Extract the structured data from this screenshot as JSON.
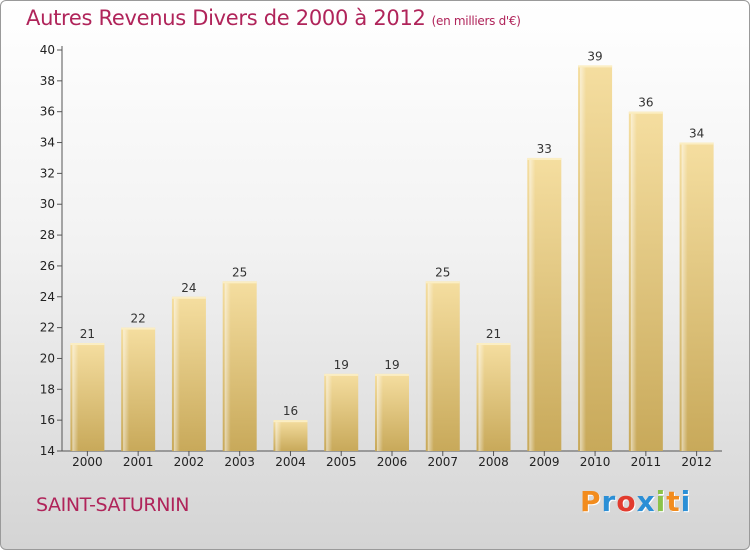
{
  "title": "Autres Revenus Divers de 2000 à 2012",
  "title_unit": "(en milliers d'€)",
  "commune": "SAINT-SATURNIN",
  "logo": {
    "letters": [
      "P",
      "r",
      "o",
      "x",
      "i",
      "t",
      "i"
    ],
    "colors": [
      "#f28c1e",
      "#2b8fd6",
      "#e23b2e",
      "#2b8fd6",
      "#8bc34a",
      "#f28c1e",
      "#2b8fd6"
    ]
  },
  "colors": {
    "bar_top": "#f5dea0",
    "bar_bottom": "#c8a95a",
    "axis": "#555555",
    "title": "#b0245a"
  },
  "chart_data": {
    "type": "bar",
    "title": "Autres Revenus Divers de 2000 à 2012",
    "categories": [
      "2000",
      "2001",
      "2002",
      "2003",
      "2004",
      "2005",
      "2006",
      "2007",
      "2008",
      "2009",
      "2010",
      "2011",
      "2012"
    ],
    "values": [
      21,
      22,
      24,
      25,
      16,
      19,
      19,
      25,
      21,
      33,
      39,
      36,
      34
    ],
    "data_labels": [
      "21",
      "22",
      "24",
      "25",
      "16",
      "19",
      "19",
      "25",
      "21",
      "33",
      "39",
      "36",
      "34"
    ],
    "ylim": [
      14,
      40
    ],
    "yticks": [
      14,
      16,
      18,
      20,
      22,
      24,
      26,
      28,
      30,
      32,
      34,
      36,
      38,
      40
    ],
    "ytick_labels": [
      "14",
      "16",
      "18",
      "20",
      "22",
      "24",
      "26",
      "28",
      "30",
      "32",
      "34",
      "36",
      "38",
      "40"
    ],
    "grid": false,
    "legend": "none"
  }
}
